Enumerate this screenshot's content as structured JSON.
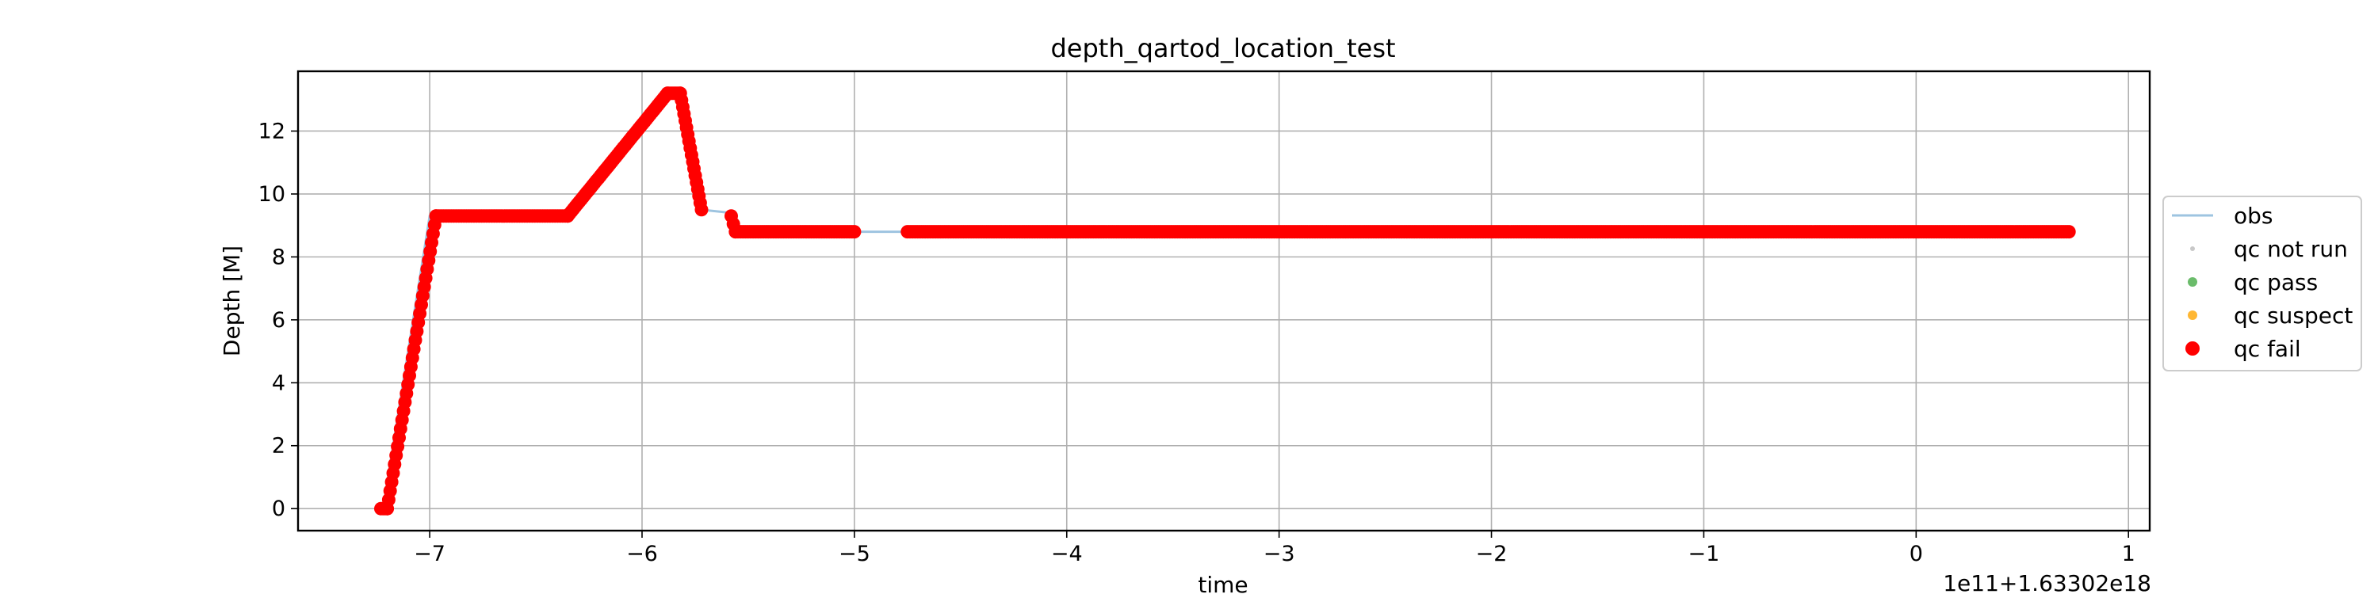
{
  "chart_data": {
    "type": "scatter",
    "title": "depth_qartod_location_test",
    "xlabel": "time",
    "ylabel": "Depth [M]",
    "x_offset_label": "1e11+1.63302e18",
    "xlim": [
      -7.62,
      1.1
    ],
    "ylim": [
      -0.7,
      13.9
    ],
    "x_ticks": [
      -7,
      -6,
      -5,
      -4,
      -3,
      -2,
      -1,
      0,
      1
    ],
    "x_tick_labels": [
      "−7",
      "−6",
      "−5",
      "−4",
      "−3",
      "−2",
      "−1",
      "0",
      "1"
    ],
    "y_ticks": [
      0,
      2,
      4,
      6,
      8,
      10,
      12
    ],
    "y_tick_labels": [
      "0",
      "2",
      "4",
      "6",
      "8",
      "10",
      "12"
    ],
    "grid": true,
    "legend_position": "center-right outside",
    "colors": {
      "obs": "#9ec4e0",
      "qc_not_run": "#c8c8c8",
      "qc_pass": "#2ca02c",
      "qc_suspect": "#ffa500",
      "qc_fail": "#ff0000"
    },
    "legend": [
      "obs",
      "qc not run",
      "qc pass",
      "qc suspect",
      "qc fail"
    ],
    "series": [
      {
        "name": "obs",
        "kind": "line",
        "points": [
          [
            -7.22,
            0.0
          ],
          [
            -7.0,
            9.3
          ],
          [
            -6.35,
            9.3
          ],
          [
            -5.88,
            13.2
          ],
          [
            -5.82,
            13.1
          ],
          [
            -5.72,
            9.5
          ],
          [
            -5.58,
            9.4
          ],
          [
            -5.56,
            8.8
          ],
          [
            -5.0,
            8.8
          ],
          [
            -4.75,
            8.8
          ],
          [
            0.72,
            8.8
          ]
        ]
      },
      {
        "name": "qc fail",
        "kind": "markers",
        "segments": [
          {
            "from": [
              -7.23,
              0.0
            ],
            "to": [
              -7.2,
              0.0
            ],
            "step": 0.012
          },
          {
            "from": [
              -7.2,
              0.0
            ],
            "to": [
              -6.97,
              9.3
            ],
            "step": 0.007
          },
          {
            "from": [
              -6.97,
              9.3
            ],
            "to": [
              -6.35,
              9.3
            ],
            "step": 0.012
          },
          {
            "from": [
              -6.35,
              9.3
            ],
            "to": [
              -5.88,
              13.2
            ],
            "step": 0.009
          },
          {
            "from": [
              -5.88,
              13.2
            ],
            "to": [
              -5.82,
              13.2
            ],
            "step": 0.01
          },
          {
            "from": [
              -5.82,
              13.2
            ],
            "to": [
              -5.72,
              9.5
            ],
            "step": 0.006
          },
          {
            "from": [
              -5.58,
              9.3
            ],
            "to": [
              -5.56,
              8.8
            ],
            "step": 0.01
          },
          {
            "from": [
              -5.56,
              8.8
            ],
            "to": [
              -5.0,
              8.8
            ],
            "step": 0.012
          },
          {
            "from": [
              -4.75,
              8.8
            ],
            "to": [
              0.72,
              8.8
            ],
            "step": 0.012
          }
        ]
      }
    ]
  }
}
